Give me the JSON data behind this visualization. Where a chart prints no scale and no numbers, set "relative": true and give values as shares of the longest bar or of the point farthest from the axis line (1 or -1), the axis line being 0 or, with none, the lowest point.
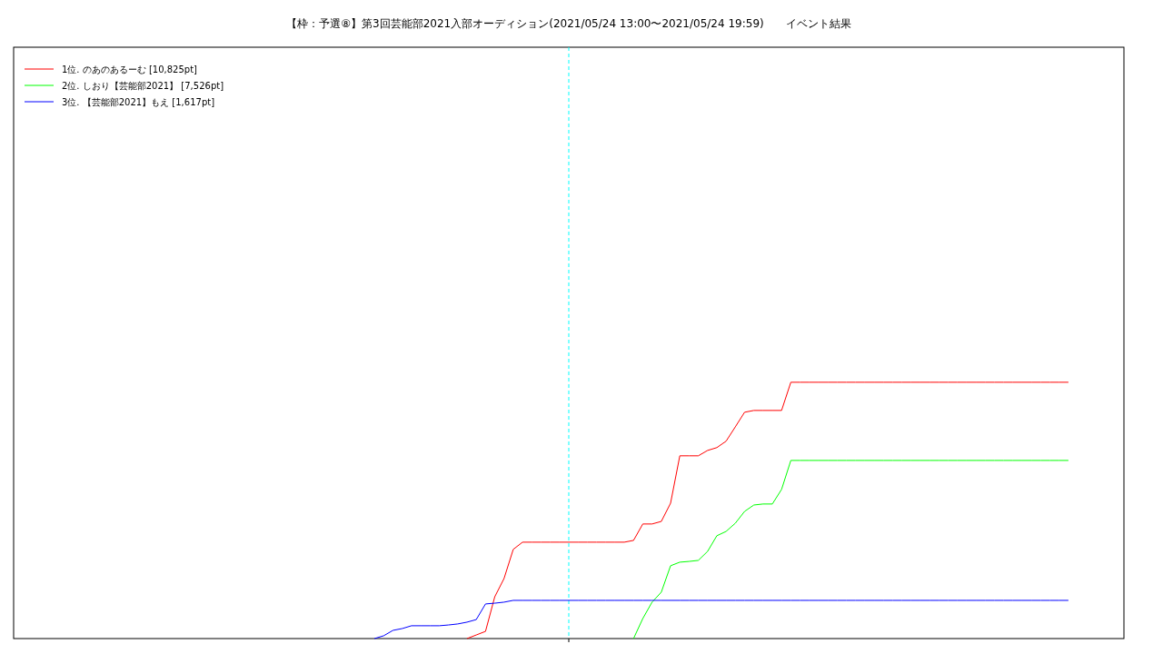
{
  "chart_data": {
    "type": "line",
    "title": "【枠：予選⑧】第3回芸能部2021入部オーディション(2021/05/24 13:00〜2021/05/24 19:59)　　イベント結果",
    "relative": true,
    "legend": "top left",
    "line_style": "solid",
    "categories": [
      null,
      null,
      null,
      null,
      null,
      null,
      null,
      null,
      null,
      null,
      null,
      null,
      null,
      null,
      null,
      null,
      null,
      null,
      null,
      null,
      null,
      null,
      null,
      null,
      null,
      null,
      null,
      null,
      null,
      null,
      null,
      null,
      null,
      null,
      null,
      null,
      null,
      null,
      null,
      null,
      null,
      null,
      null,
      null,
      null,
      null,
      null,
      null,
      null,
      null,
      null,
      null,
      null,
      null,
      null,
      null,
      null,
      null,
      null,
      null,
      null,
      null,
      null,
      null,
      null,
      null,
      null,
      null,
      null,
      null,
      null,
      null,
      null,
      null,
      null,
      null,
      null,
      null,
      null,
      null,
      null,
      null,
      null,
      null,
      null,
      null,
      null,
      null,
      null,
      null,
      null,
      null,
      null,
      null,
      null,
      null,
      null,
      null,
      null,
      null,
      null,
      null,
      null,
      null,
      null,
      null,
      null,
      null,
      null,
      null,
      null,
      null,
      null,
      null,
      null
    ],
    "series": [
      {
        "name": "1位. のあのあるーむ [10,825pt]",
        "color": "#ff0000",
        "values": [
          null,
          null,
          null,
          null,
          null,
          null,
          null,
          null,
          null,
          null,
          null,
          null,
          null,
          null,
          null,
          null,
          null,
          null,
          null,
          null,
          null,
          null,
          null,
          null,
          null,
          null,
          null,
          null,
          null,
          null,
          null,
          null,
          null,
          null,
          null,
          null,
          null,
          null,
          null,
          null,
          null,
          null,
          null,
          null,
          null,
          null,
          null,
          null,
          null,
          0,
          0.014,
          0.028,
          0.163,
          0.234,
          0.348,
          0.376,
          0.376,
          0.376,
          0.376,
          0.376,
          0.376,
          0.376,
          0.376,
          0.376,
          0.376,
          0.376,
          0.376,
          0.383,
          0.447,
          0.447,
          0.457,
          0.528,
          0.713,
          0.713,
          0.713,
          0.734,
          0.745,
          0.77,
          0.826,
          0.883,
          0.89,
          0.89,
          0.89,
          0.89,
          1,
          1,
          1,
          1,
          1,
          1,
          1,
          1,
          1,
          1,
          1,
          1,
          1,
          1,
          1,
          1,
          1,
          1,
          1,
          1,
          1,
          1,
          1,
          1,
          1,
          1,
          1,
          1,
          1,
          1,
          1
        ]
      },
      {
        "name": "2位. しおり【芸能部2021】 [7,526pt]",
        "color": "#00ff00",
        "values": [
          null,
          null,
          null,
          null,
          null,
          null,
          null,
          null,
          null,
          null,
          null,
          null,
          null,
          null,
          null,
          null,
          null,
          null,
          null,
          null,
          null,
          null,
          null,
          null,
          null,
          null,
          null,
          null,
          null,
          null,
          null,
          null,
          null,
          null,
          null,
          null,
          null,
          null,
          null,
          null,
          null,
          null,
          null,
          null,
          null,
          null,
          null,
          null,
          null,
          null,
          null,
          null,
          null,
          null,
          null,
          null,
          null,
          null,
          null,
          null,
          null,
          null,
          null,
          null,
          null,
          null,
          null,
          0,
          0.078,
          0.142,
          0.181,
          0.284,
          0.298,
          0.301,
          0.305,
          0.34,
          0.401,
          0.418,
          0.45,
          0.496,
          0.521,
          0.525,
          0.525,
          0.582,
          0.695,
          0.695,
          0.695,
          0.695,
          0.695,
          0.695,
          0.695,
          0.695,
          0.695,
          0.695,
          0.695,
          0.695,
          0.695,
          0.695,
          0.695,
          0.695,
          0.695,
          0.695,
          0.695,
          0.695,
          0.695,
          0.695,
          0.695,
          0.695,
          0.695,
          0.695,
          0.695,
          0.695,
          0.695,
          0.695,
          0.695
        ]
      },
      {
        "name": "3位. 【芸能部2021】もえ [1,617pt]",
        "color": "#0000ff",
        "values": [
          null,
          null,
          null,
          null,
          null,
          null,
          null,
          null,
          null,
          null,
          null,
          null,
          null,
          null,
          null,
          null,
          null,
          null,
          null,
          null,
          null,
          null,
          null,
          null,
          null,
          null,
          null,
          null,
          null,
          null,
          null,
          null,
          null,
          null,
          null,
          null,
          null,
          null,
          null,
          0,
          0.011,
          0.032,
          0.039,
          0.05,
          0.05,
          0.05,
          0.05,
          0.053,
          0.057,
          0.064,
          0.074,
          0.135,
          0.138,
          0.142,
          0.149,
          0.149,
          0.149,
          0.149,
          0.149,
          0.149,
          0.149,
          0.149,
          0.149,
          0.149,
          0.149,
          0.149,
          0.149,
          0.149,
          0.149,
          0.149,
          0.149,
          0.149,
          0.149,
          0.149,
          0.149,
          0.149,
          0.149,
          0.149,
          0.149,
          0.149,
          0.149,
          0.149,
          0.149,
          0.149,
          0.149,
          0.149,
          0.149,
          0.149,
          0.149,
          0.149,
          0.149,
          0.149,
          0.149,
          0.149,
          0.149,
          0.149,
          0.149,
          0.149,
          0.149,
          0.149,
          0.149,
          0.149,
          0.149,
          0.149,
          0.149,
          0.149,
          0.149,
          0.149,
          0.149,
          0.149,
          0.149,
          0.149,
          0.149,
          0.149,
          0.149
        ]
      }
    ]
  }
}
